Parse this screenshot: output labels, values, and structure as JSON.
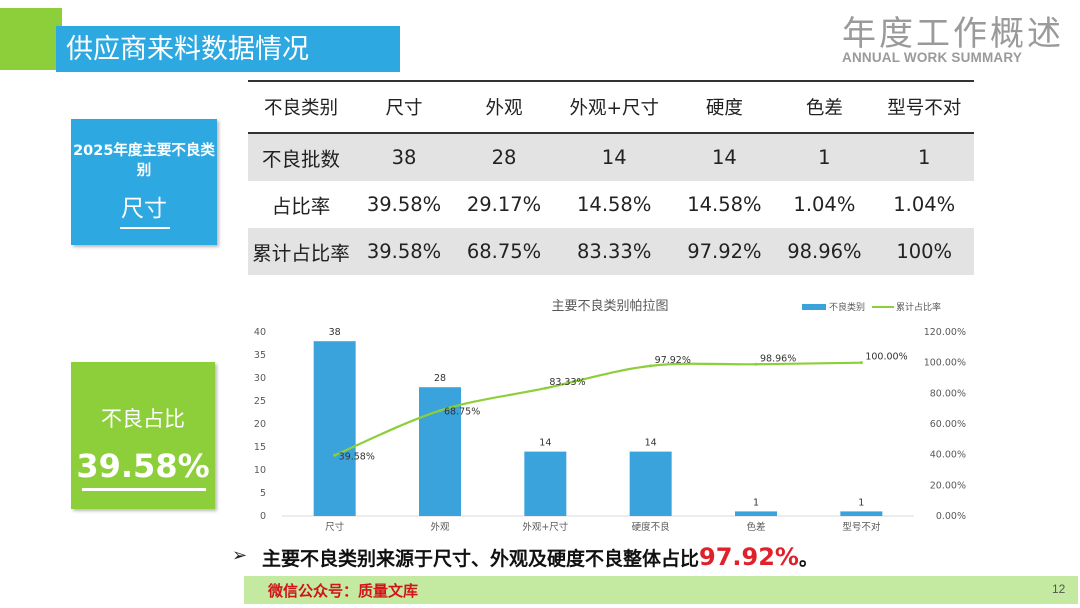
{
  "header": {
    "title": "供应商来料数据情况",
    "corner_title": "年度工作概述",
    "corner_subtitle": "ANNUAL WORK SUMMARY"
  },
  "card_top": {
    "label": "2025年度主要不良类别",
    "value": "尺寸"
  },
  "card_bottom": {
    "label": "不良占比",
    "value": "39.58%"
  },
  "table": {
    "header": [
      "不良类别",
      "尺寸",
      "外观",
      "外观+尺寸",
      "硬度",
      "色差",
      "型号不对"
    ],
    "rows": [
      [
        "不良批数",
        "38",
        "28",
        "14",
        "14",
        "1",
        "1"
      ],
      [
        "占比率",
        "39.58%",
        "29.17%",
        "14.58%",
        "14.58%",
        "1.04%",
        "1.04%"
      ],
      [
        "累计占比率",
        "39.58%",
        "68.75%",
        "83.33%",
        "97.92%",
        "98.96%",
        "100%"
      ]
    ]
  },
  "chart_data": {
    "type": "bar",
    "title": "主要不良类别帕拉图",
    "categories": [
      "尺寸",
      "外观",
      "外观+尺寸",
      "硬度不良",
      "色差",
      "型号不对"
    ],
    "series": [
      {
        "name": "不良类别",
        "type": "bar",
        "axis": "left",
        "values": [
          38,
          28,
          14,
          14,
          1,
          1
        ],
        "labels": [
          "38",
          "28",
          "14",
          "14",
          "1",
          "1"
        ],
        "color": "#3aa3dc"
      },
      {
        "name": "累计占比率",
        "type": "line",
        "axis": "right",
        "values": [
          39.58,
          68.75,
          83.33,
          97.92,
          98.96,
          100.0
        ],
        "labels": [
          "39.58%",
          "68.75%",
          "83.33%",
          "97.92%",
          "98.96%",
          "100.00%"
        ],
        "color": "#8ccf3a"
      }
    ],
    "y_left": {
      "min": 0,
      "max": 40,
      "ticks": [
        "0",
        "5",
        "10",
        "15",
        "20",
        "25",
        "30",
        "35",
        "40"
      ]
    },
    "y_right": {
      "min": 0,
      "max": 120,
      "ticks": [
        "0.00%",
        "20.00%",
        "40.00%",
        "60.00%",
        "80.00%",
        "100.00%",
        "120.00%"
      ]
    },
    "legend_position": "top-right",
    "grid": false
  },
  "conclusion": {
    "arrow": "➢",
    "text": "主要不良类别来源于尺寸、外观及硬度不良整体占比",
    "highlight": "97.92%",
    "suffix": "。"
  },
  "footer": {
    "text": "微信公众号：质量文库",
    "page": "12"
  },
  "colors": {
    "blue": "#2ea8e0",
    "green": "#8ccf3a",
    "highlight_red": "#e0202a"
  }
}
